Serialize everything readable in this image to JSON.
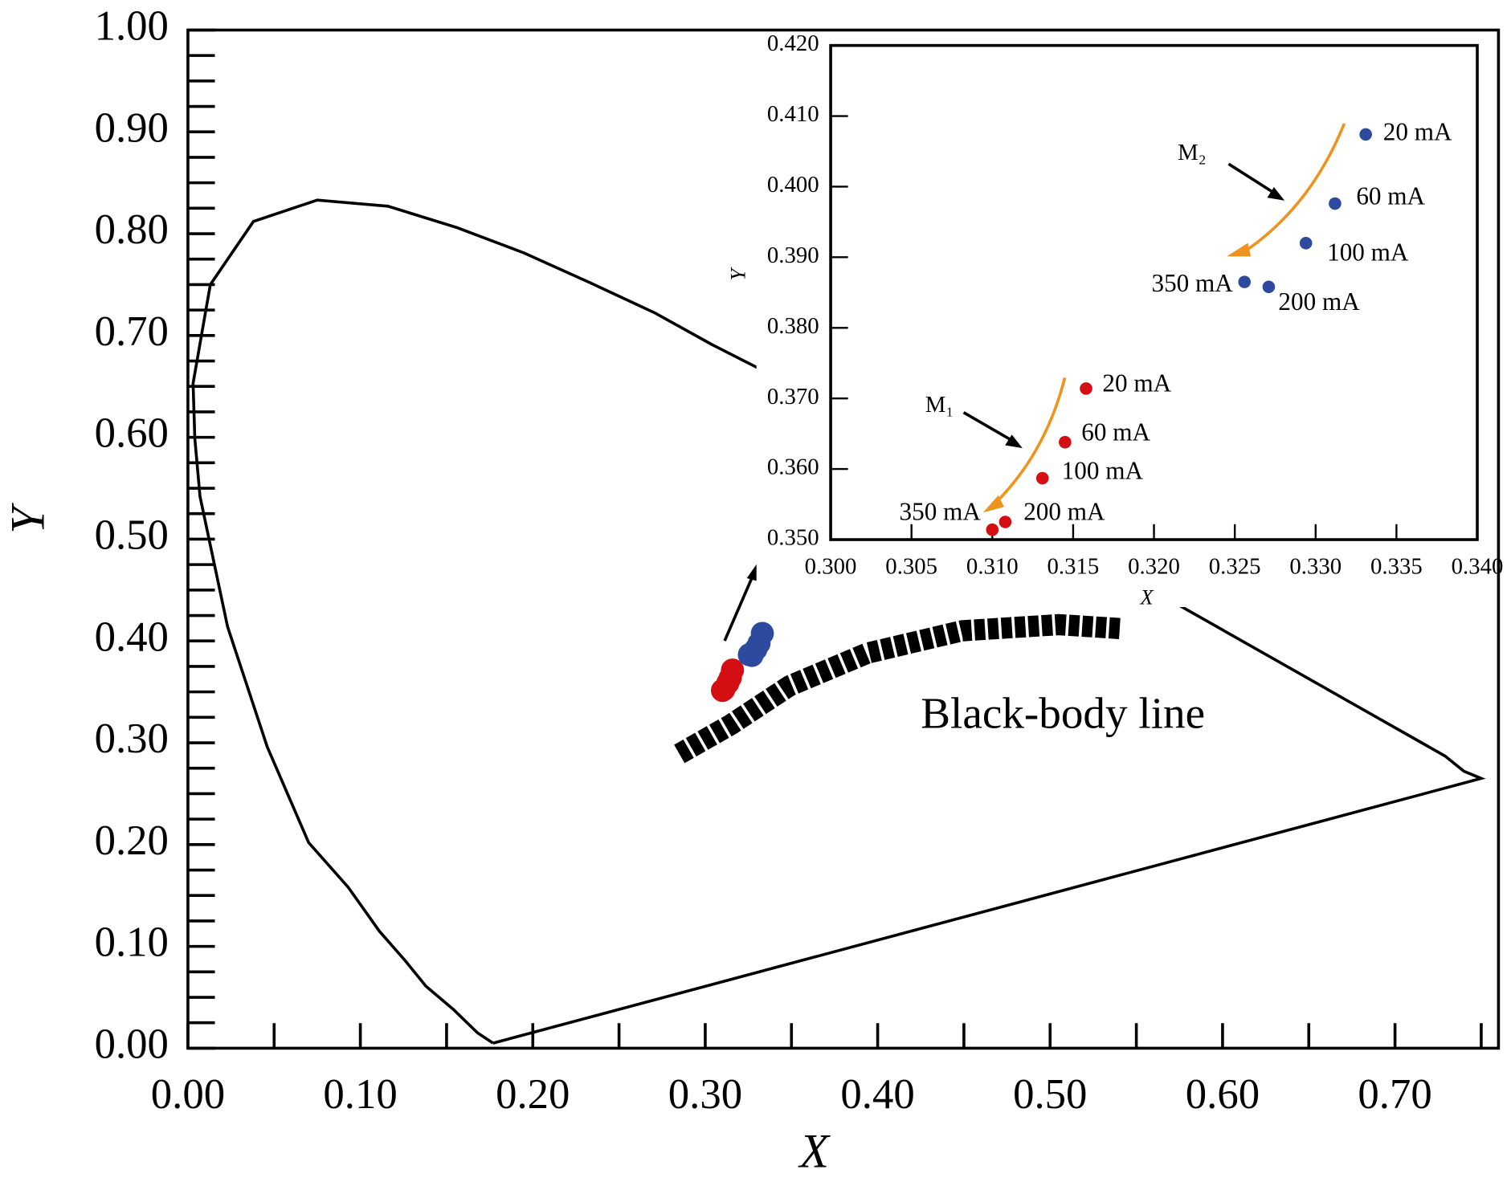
{
  "chart_data": [
    {
      "type": "line",
      "xlabel": "X",
      "ylabel": "Y",
      "xlim": [
        0,
        0.76
      ],
      "ylim": [
        0,
        1
      ],
      "xticks": [
        {
          "value": 0,
          "label": "0.00"
        },
        {
          "value": 0.1,
          "label": "0.10"
        },
        {
          "value": 0.2,
          "label": "0.20"
        },
        {
          "value": 0.3,
          "label": "0.30"
        },
        {
          "value": 0.4,
          "label": "0.40"
        },
        {
          "value": 0.5,
          "label": "0.50"
        },
        {
          "value": 0.6,
          "label": "0.60"
        },
        {
          "value": 0.7,
          "label": "0.70"
        }
      ],
      "xticks_minor": [
        0.05,
        0.15,
        0.25,
        0.35,
        0.45,
        0.55,
        0.65,
        0.75
      ],
      "yticks": [
        {
          "value": 0,
          "label": "0.00"
        },
        {
          "value": 0.1,
          "label": "0.10"
        },
        {
          "value": 0.2,
          "label": "0.20"
        },
        {
          "value": 0.3,
          "label": "0.30"
        },
        {
          "value": 0.4,
          "label": "0.40"
        },
        {
          "value": 0.5,
          "label": "0.50"
        },
        {
          "value": 0.6,
          "label": "0.60"
        },
        {
          "value": 0.7,
          "label": "0.70"
        },
        {
          "value": 0.8,
          "label": "0.80"
        },
        {
          "value": 0.9,
          "label": "0.90"
        },
        {
          "value": 1,
          "label": "1.00"
        }
      ],
      "yticks_minor": [
        0.025,
        0.05,
        0.075,
        0.125,
        0.15,
        0.175,
        0.225,
        0.25,
        0.275,
        0.325,
        0.35,
        0.375,
        0.425,
        0.45,
        0.475,
        0.525,
        0.55,
        0.575,
        0.625,
        0.65,
        0.675,
        0.725,
        0.75,
        0.775,
        0.825,
        0.85,
        0.875,
        0.925,
        0.95,
        0.975
      ],
      "locus": {
        "x": [
          0.177,
          0.168,
          0.154,
          0.138,
          0.126,
          0.111,
          0.093,
          0.07,
          0.046,
          0.023,
          0.007,
          0.004,
          0.003,
          0.013,
          0.038,
          0.075,
          0.116,
          0.156,
          0.195,
          0.233,
          0.271,
          0.304,
          0.34,
          0.579,
          0.729,
          0.74,
          0.75,
          0.177
        ],
        "y": [
          0.005,
          0.015,
          0.038,
          0.061,
          0.086,
          0.115,
          0.158,
          0.202,
          0.296,
          0.414,
          0.542,
          0.599,
          0.653,
          0.75,
          0.812,
          0.833,
          0.827,
          0.806,
          0.781,
          0.752,
          0.722,
          0.691,
          0.66,
          0.431,
          0.287,
          0.272,
          0.265,
          0.005
        ]
      },
      "blackbody": {
        "label": "Black-body line",
        "x": [
          0.285,
          0.315,
          0.349,
          0.394,
          0.449,
          0.505,
          0.542
        ],
        "y": [
          0.289,
          0.318,
          0.356,
          0.388,
          0.41,
          0.416,
          0.412
        ]
      }
    },
    {
      "type": "scatter",
      "xlabel": "X",
      "ylabel": "Y",
      "xlim": [
        0.3,
        0.34
      ],
      "ylim": [
        0.35,
        0.42
      ],
      "xticks": [
        {
          "value": 0.3,
          "label": "0.300"
        },
        {
          "value": 0.305,
          "label": "0.305"
        },
        {
          "value": 0.31,
          "label": "0.310"
        },
        {
          "value": 0.315,
          "label": "0.315"
        },
        {
          "value": 0.32,
          "label": "0.320"
        },
        {
          "value": 0.325,
          "label": "0.325"
        },
        {
          "value": 0.33,
          "label": "0.330"
        },
        {
          "value": 0.335,
          "label": "0.335"
        },
        {
          "value": 0.34,
          "label": "0.340"
        }
      ],
      "yticks": [
        {
          "value": 0.35,
          "label": "0.350"
        },
        {
          "value": 0.36,
          "label": "0.360"
        },
        {
          "value": 0.37,
          "label": "0.370"
        },
        {
          "value": 0.38,
          "label": "0.380"
        },
        {
          "value": 0.39,
          "label": "0.390"
        },
        {
          "value": 0.4,
          "label": "0.400"
        },
        {
          "value": 0.41,
          "label": "0.410"
        },
        {
          "value": 0.42,
          "label": "0.420"
        }
      ],
      "series": [
        {
          "name": "M₁",
          "color": "#d40f14",
          "x": [
            0.3158,
            0.3145,
            0.3131,
            0.3108,
            0.31
          ],
          "y": [
            0.3714,
            0.3638,
            0.3587,
            0.3525,
            0.3514
          ],
          "labels": [
            "20 mA",
            "60 mA",
            "100 mA",
            "200 mA",
            "350 mA"
          ]
        },
        {
          "name": "M₂",
          "color": "#2e4a9e",
          "x": [
            0.3331,
            0.3312,
            0.3294,
            0.3271,
            0.3256
          ],
          "y": [
            0.4074,
            0.3976,
            0.392,
            0.3858,
            0.3865
          ],
          "labels": [
            "20 mA",
            "60 mA",
            "100 mA",
            "200 mA",
            "350 mA"
          ]
        }
      ]
    }
  ]
}
